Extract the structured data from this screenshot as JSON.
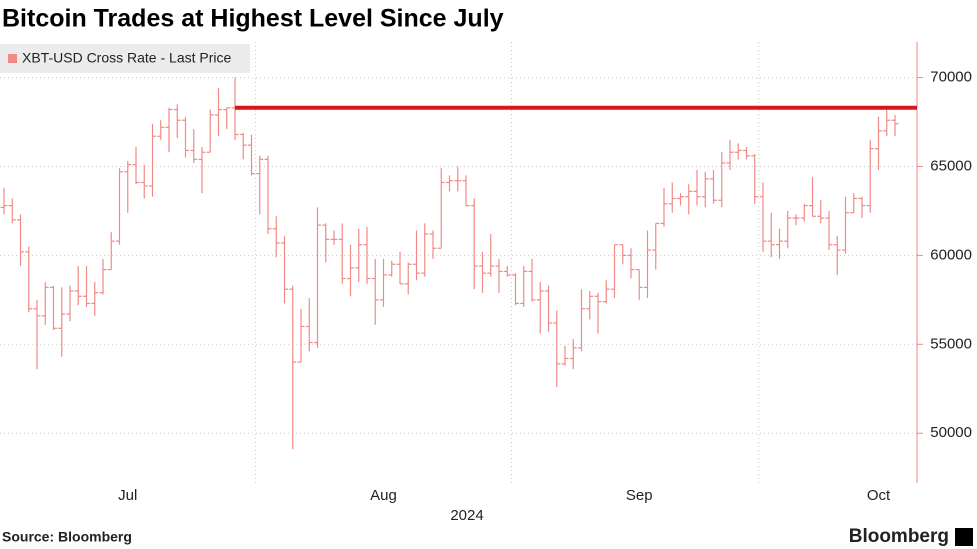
{
  "chart_data": {
    "type": "ohlc",
    "title": "Bitcoin Trades at Highest Level Since July",
    "x_label": "2024",
    "source": "Source: Bloomberg",
    "logo": "Bloomberg",
    "categories": [
      null,
      null,
      null,
      null,
      null,
      null,
      null,
      null,
      null,
      null,
      null,
      null,
      null,
      null,
      null,
      "Jul",
      null,
      null,
      null,
      null,
      null,
      null,
      null,
      null,
      null,
      null,
      null,
      null,
      null,
      null,
      null,
      null,
      null,
      null,
      null,
      null,
      null,
      null,
      null,
      null,
      null,
      null,
      null,
      null,
      null,
      null,
      "Aug",
      null,
      null,
      null,
      null,
      null,
      null,
      null,
      null,
      null,
      null,
      null,
      null,
      null,
      null,
      null,
      null,
      null,
      null,
      null,
      null,
      null,
      null,
      null,
      null,
      null,
      null,
      null,
      null,
      null,
      null,
      "Sep",
      null,
      null,
      null,
      null,
      null,
      null,
      null,
      null,
      null,
      null,
      null,
      null,
      null,
      null,
      null,
      null,
      null,
      null,
      null,
      null,
      null,
      null,
      null,
      null,
      null,
      null,
      null,
      null,
      "Oct",
      null,
      null
    ],
    "series": [
      {
        "name": "XBT-USD Cross Rate - Last Price",
        "color": "#f08a86",
        "open": [
          62700,
          62800,
          62000,
          60200,
          57000,
          56600,
          58200,
          55900,
          56700,
          58000,
          57700,
          57300,
          57900,
          59200,
          60800,
          64700,
          65100,
          64100,
          63900,
          66700,
          67200,
          68200,
          67600,
          65900,
          65400,
          65800,
          67900,
          68200,
          68300,
          66800,
          66200,
          64600,
          65400,
          61500,
          60700,
          58100,
          54000,
          56000,
          55100,
          61700,
          60900,
          60900,
          58700,
          59300,
          60600,
          58700,
          57500,
          58900,
          59500,
          58400,
          59500,
          59000,
          61200,
          60400,
          64100,
          64200,
          64200,
          62800,
          59400,
          59000,
          59400,
          59100,
          58900,
          57300,
          59100,
          57500,
          58000,
          56200,
          53900,
          54200,
          54800,
          57000,
          57700,
          57400,
          58100,
          60600,
          60000,
          59200,
          58200,
          60300,
          61800,
          62900,
          63200,
          63300,
          63600,
          63300,
          64300,
          63100,
          65200,
          65800,
          65900,
          65600,
          63300,
          60800,
          60600,
          60800,
          62100,
          62100,
          62800,
          62200,
          62100,
          60600,
          60300,
          62400,
          63200,
          62800,
          66000,
          67000,
          67600
        ],
        "high": [
          63800,
          63200,
          62300,
          60500,
          57500,
          58500,
          58300,
          58200,
          58300,
          59400,
          59400,
          58500,
          59800,
          61300,
          64900,
          65300,
          66100,
          65100,
          67400,
          67600,
          68300,
          68500,
          67800,
          67100,
          66100,
          68200,
          69400,
          68300,
          70000,
          66900,
          66800,
          65600,
          65600,
          62200,
          61100,
          58300,
          57000,
          57600,
          62700,
          61800,
          61400,
          61800,
          60600,
          61500,
          61600,
          59800,
          59800,
          59700,
          60200,
          59600,
          61400,
          61800,
          61400,
          64900,
          64500,
          65000,
          64500,
          63200,
          60200,
          61200,
          59800,
          59400,
          59000,
          59400,
          59800,
          58500,
          58300,
          56900,
          54900,
          55300,
          58100,
          58000,
          57900,
          58600,
          60600,
          60600,
          60400,
          59200,
          61400,
          61800,
          63800,
          64100,
          63500,
          64000,
          64800,
          64700,
          64800,
          65800,
          66500,
          66300,
          66100,
          65700,
          64100,
          62400,
          61500,
          62500,
          62300,
          62900,
          64400,
          63100,
          62500,
          61100,
          63300,
          63500,
          63300,
          66500,
          67800,
          68400,
          67900
        ],
        "low": [
          62300,
          61800,
          59400,
          56800,
          53600,
          56100,
          55800,
          54300,
          56300,
          57200,
          57100,
          56600,
          57800,
          59200,
          60600,
          62400,
          64000,
          63200,
          63300,
          66500,
          65800,
          66600,
          65500,
          65200,
          63500,
          65800,
          66700,
          67100,
          66500,
          65400,
          64500,
          62300,
          61200,
          59900,
          57300,
          49100,
          54000,
          54600,
          54800,
          59600,
          60600,
          58400,
          57700,
          58500,
          58400,
          56100,
          57100,
          58800,
          58400,
          57800,
          58600,
          58800,
          59800,
          60400,
          63600,
          63600,
          62800,
          58100,
          57900,
          58800,
          57900,
          58800,
          57200,
          57100,
          57400,
          55600,
          55700,
          52600,
          53800,
          53600,
          54600,
          56400,
          55600,
          57300,
          57600,
          59500,
          58700,
          57500,
          57600,
          59200,
          61600,
          62400,
          62800,
          62300,
          62800,
          62700,
          62900,
          62700,
          64800,
          65400,
          65400,
          62900,
          60200,
          59900,
          59800,
          60400,
          61700,
          61900,
          62200,
          61800,
          60300,
          58900,
          60100,
          62400,
          62100,
          62400,
          64800,
          66700,
          66700
        ],
        "close": [
          62800,
          62000,
          60200,
          57000,
          56600,
          58200,
          55900,
          56700,
          58000,
          57700,
          57300,
          57900,
          59200,
          60800,
          64700,
          65100,
          64100,
          63900,
          66700,
          67200,
          68200,
          67600,
          65900,
          65400,
          65800,
          67900,
          68200,
          68300,
          66800,
          66200,
          64600,
          65400,
          61500,
          60700,
          58100,
          54000,
          56000,
          55100,
          61700,
          60900,
          60900,
          58700,
          59300,
          60600,
          58700,
          57500,
          58900,
          59500,
          58400,
          59500,
          59000,
          61200,
          60400,
          64100,
          64200,
          64200,
          62800,
          59400,
          59000,
          59400,
          59100,
          58900,
          57300,
          59100,
          57500,
          58000,
          56200,
          53900,
          54200,
          54800,
          57000,
          57700,
          57400,
          58100,
          60600,
          60000,
          59200,
          58200,
          60300,
          61800,
          62900,
          63200,
          63300,
          63600,
          63300,
          64300,
          63100,
          65200,
          65800,
          65900,
          65600,
          63300,
          60800,
          60600,
          60800,
          62100,
          62100,
          62800,
          62200,
          62100,
          60600,
          60300,
          62400,
          63200,
          62800,
          66000,
          67000,
          67600,
          67400
        ]
      }
    ],
    "reference_line": {
      "value": 68300,
      "color": "#d81818"
    },
    "ylim": [
      47200,
      72000
    ],
    "yticks": [
      50000,
      55000,
      60000,
      65000,
      70000
    ],
    "axis_color": "#f08a86",
    "grid": true
  }
}
